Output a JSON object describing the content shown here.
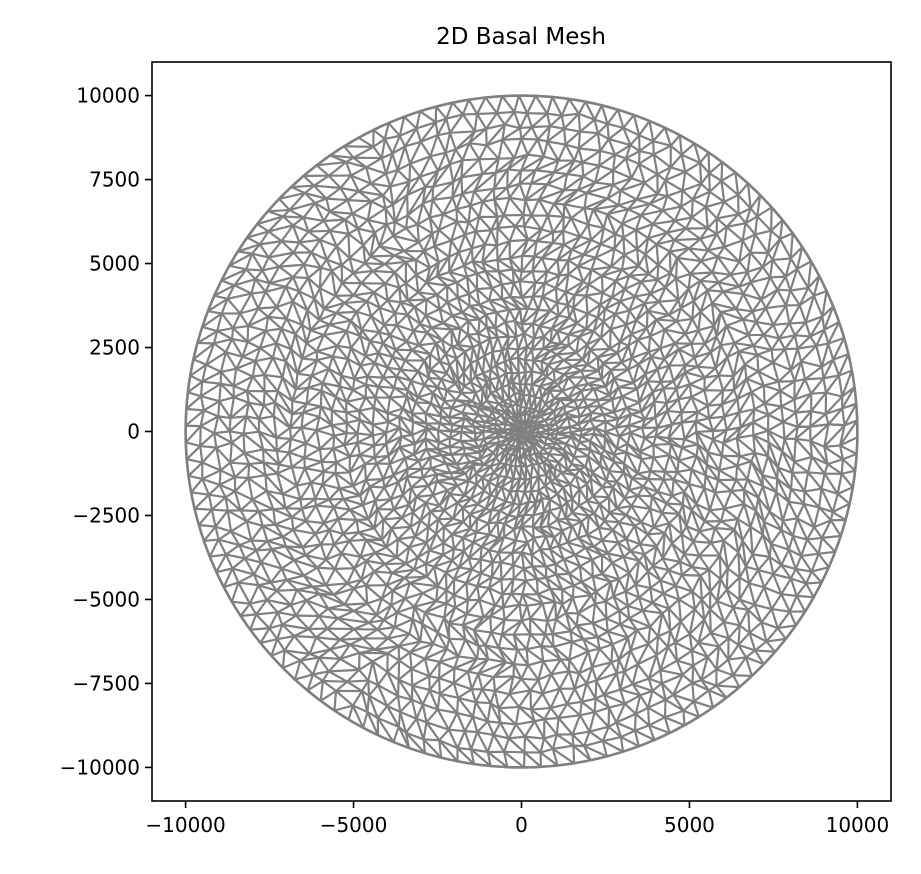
{
  "chart_data": {
    "type": "mesh",
    "title": "2D Basal Mesh",
    "xlabel": "",
    "ylabel": "",
    "xlim": [
      -11000,
      11000
    ],
    "ylim": [
      -11000,
      11000
    ],
    "x_ticks": [
      -10000,
      -5000,
      0,
      5000,
      10000
    ],
    "x_tick_labels": [
      "−10000",
      "−5000",
      "0",
      "5000",
      "10000"
    ],
    "y_ticks": [
      10000,
      7500,
      5000,
      2500,
      0,
      -2500,
      -5000,
      -7500,
      -10000
    ],
    "y_tick_labels": [
      "10000",
      "7500",
      "5000",
      "2500",
      "0",
      "−2500",
      "−5000",
      "−7500",
      "−10000"
    ],
    "grid": false,
    "legend": "none",
    "mesh": {
      "shape": "circle",
      "center": [
        0,
        0
      ],
      "radius": 10000,
      "element": "triangle",
      "boundary_node_count": 126,
      "refinement": "finer toward center"
    },
    "line_color": "#808080",
    "axis_color": "#000000"
  }
}
